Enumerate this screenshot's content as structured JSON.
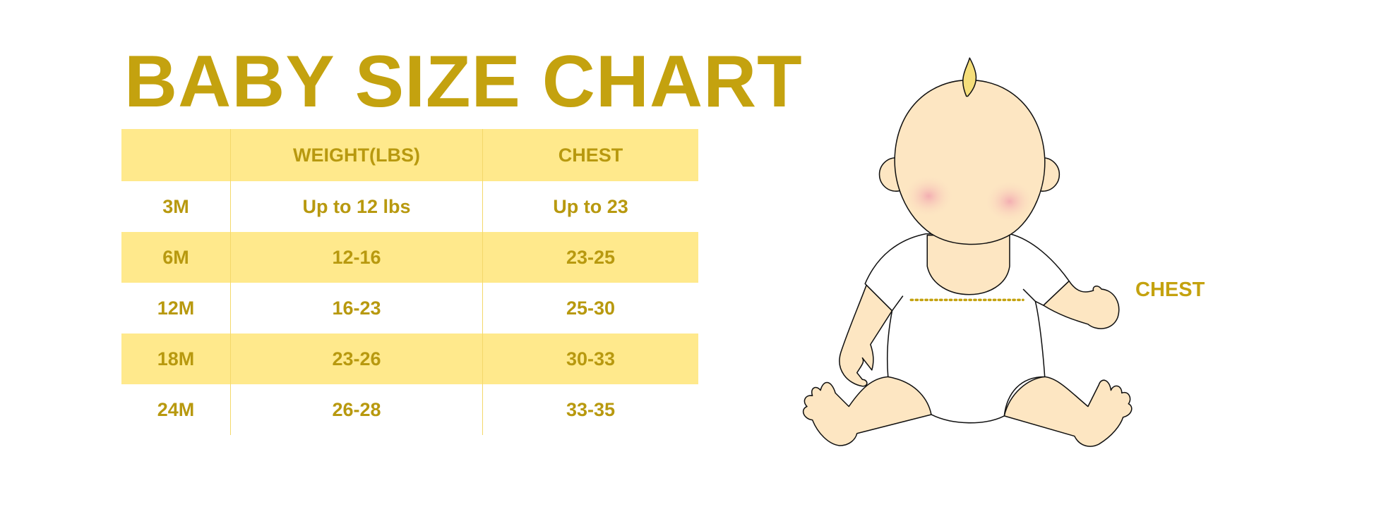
{
  "title": "BABY SIZE CHART",
  "chart_data": {
    "type": "table",
    "columns": [
      "",
      "WEIGHT(LBS)",
      "CHEST"
    ],
    "rows": [
      {
        "size": "3M",
        "weight": "Up to 12 lbs",
        "chest": "Up to 23"
      },
      {
        "size": "6M",
        "weight": "12-16",
        "chest": "23-25"
      },
      {
        "size": "12M",
        "weight": "16-23",
        "chest": "25-30"
      },
      {
        "size": "18M",
        "weight": "23-26",
        "chest": "30-33"
      },
      {
        "size": "24M",
        "weight": "26-28",
        "chest": "33-35"
      }
    ]
  },
  "illustration": {
    "chest_label": "CHEST"
  },
  "colors": {
    "accent": "#c4a20f",
    "band": "#ffe98c",
    "skin": "#fde6c2"
  }
}
